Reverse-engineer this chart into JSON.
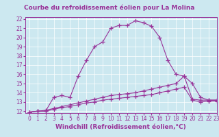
{
  "title": "Courbe du refroidissement éolien pour La Molina",
  "xlabel": "Windchill (Refroidissement éolien,°C)",
  "xlim": [
    -0.5,
    23
  ],
  "ylim": [
    11.8,
    22.2
  ],
  "yticks": [
    12,
    13,
    14,
    15,
    16,
    17,
    18,
    19,
    20,
    21,
    22
  ],
  "xticks": [
    0,
    1,
    2,
    3,
    4,
    5,
    6,
    7,
    8,
    9,
    10,
    11,
    12,
    13,
    14,
    15,
    16,
    17,
    18,
    19,
    20,
    21,
    22,
    23
  ],
  "bg_color": "#cce8f0",
  "line_color": "#993399",
  "line1_x": [
    0,
    1,
    2,
    3,
    4,
    5,
    6,
    7,
    8,
    9,
    10,
    11,
    12,
    13,
    14,
    15,
    16,
    17,
    18,
    19,
    20,
    21,
    22,
    23
  ],
  "line1_y": [
    11.9,
    12.0,
    12.0,
    13.5,
    13.7,
    13.5,
    15.8,
    17.5,
    19.0,
    19.5,
    21.0,
    21.3,
    21.3,
    21.8,
    21.6,
    21.2,
    20.0,
    17.5,
    16.0,
    15.8,
    15.0,
    13.5,
    13.2,
    13.2
  ],
  "line2_x": [
    0,
    1,
    2,
    3,
    4,
    5,
    6,
    7,
    8,
    9,
    10,
    11,
    12,
    13,
    14,
    15,
    16,
    17,
    18,
    19,
    20,
    21,
    22,
    23
  ],
  "line2_y": [
    11.9,
    12.0,
    12.1,
    12.3,
    12.5,
    12.7,
    12.9,
    13.1,
    13.3,
    13.5,
    13.7,
    13.8,
    13.9,
    14.0,
    14.2,
    14.4,
    14.6,
    14.8,
    15.0,
    15.8,
    13.3,
    13.2,
    13.2,
    13.2
  ],
  "line3_x": [
    0,
    1,
    2,
    3,
    4,
    5,
    6,
    7,
    8,
    9,
    10,
    11,
    12,
    13,
    14,
    15,
    16,
    17,
    18,
    19,
    20,
    21,
    22,
    23
  ],
  "line3_y": [
    11.9,
    12.0,
    12.0,
    12.2,
    12.4,
    12.5,
    12.7,
    12.9,
    13.0,
    13.2,
    13.3,
    13.4,
    13.5,
    13.6,
    13.7,
    13.8,
    14.0,
    14.2,
    14.4,
    14.6,
    13.2,
    13.0,
    13.1,
    13.1
  ],
  "marker": "+",
  "markersize": 4,
  "linewidth": 0.8,
  "title_fontsize": 6.5,
  "xlabel_fontsize": 6.5,
  "tick_fontsize": 5.5
}
